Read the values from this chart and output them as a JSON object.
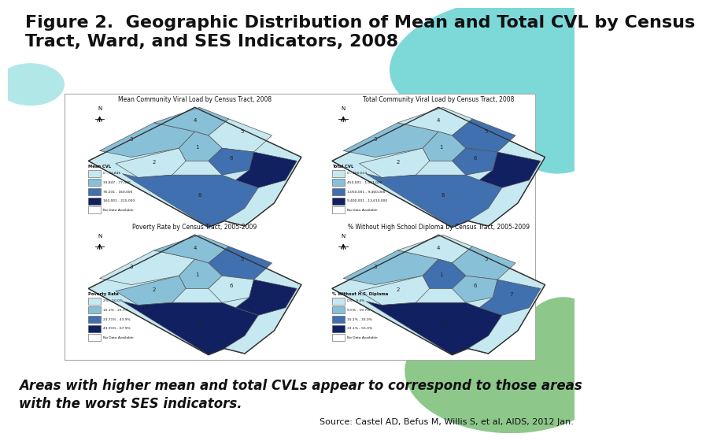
{
  "title": "Figure 2.  Geographic Distribution of Mean and Total CVL by Census\nTract, Ward, and SES Indicators, 2008",
  "title_fontsize": 16,
  "title_color": "#111111",
  "bg_color": "#ffffff",
  "teal_color": "#7dd8d8",
  "green_color": "#8dc88a",
  "panel_bg": "#ffffff",
  "panel_border": "#cccccc",
  "footer_bg": "#b2b2b2",
  "footer_text": "Areas with higher mean and total CVLs appear to correspond to those areas\nwith the worst SES indicators.",
  "footer_fontsize": 12,
  "source_text": "Source: Castel AD, Befus M, Willis S, et al, AIDS, 2012 Jan.",
  "source_fontsize": 8,
  "map_titles": [
    "Mean Community Viral Load by Census Tract, 2008",
    "Total Community Viral Load by Census Tract, 2008",
    "Poverty Rate by Census Tract, 2005-2009",
    "% Without High School Diploma by Census Tract, 2005-2009"
  ],
  "legend_titles": [
    "Mean CVL",
    "Total CVL",
    "Poverty Rate",
    "% Without H.S. Diploma"
  ],
  "legend_labels": [
    [
      "0 - 33,846",
      "33,847 - 77,000",
      "76,031 - 160,000",
      "160,001 - 215,000",
      "No Data Available"
    ],
    [
      "0 - 450,013",
      "450,001 - 1,051,006",
      "1,050,001 - 9,460,000",
      "9,400,001 - 13,610,000",
      "No Data Available"
    ],
    [
      "2% - 10.0%",
      "10.1% - 23.7%",
      "23.71% - 43.9%",
      "43.91% - 67.9%",
      "No Data Available"
    ],
    [
      "0% - 9.4%",
      "9.5% - 19.7%",
      "10.1% - 33.0%",
      "33.1% - 55.0%",
      "No Data Available"
    ]
  ],
  "map_colors": [
    [
      "#c6e8f0",
      "#88c0d8",
      "#4070b0",
      "#102060",
      "#ffffff"
    ],
    [
      "#c6e8f0",
      "#88c0d8",
      "#4070b0",
      "#102060",
      "#ffffff"
    ],
    [
      "#c6e8f0",
      "#88c0d8",
      "#4070b0",
      "#102060",
      "#ffffff"
    ],
    [
      "#c6e8f0",
      "#88c0d8",
      "#4070b0",
      "#102060",
      "#ffffff"
    ]
  ],
  "ward_colors_map": [
    [
      1,
      1,
      0,
      1,
      2,
      0,
      3,
      2
    ],
    [
      1,
      0,
      2,
      1,
      2,
      0,
      3,
      2
    ],
    [
      0,
      1,
      2,
      1,
      0,
      1,
      3,
      3
    ],
    [
      1,
      0,
      1,
      2,
      1,
      0,
      2,
      3
    ]
  ]
}
